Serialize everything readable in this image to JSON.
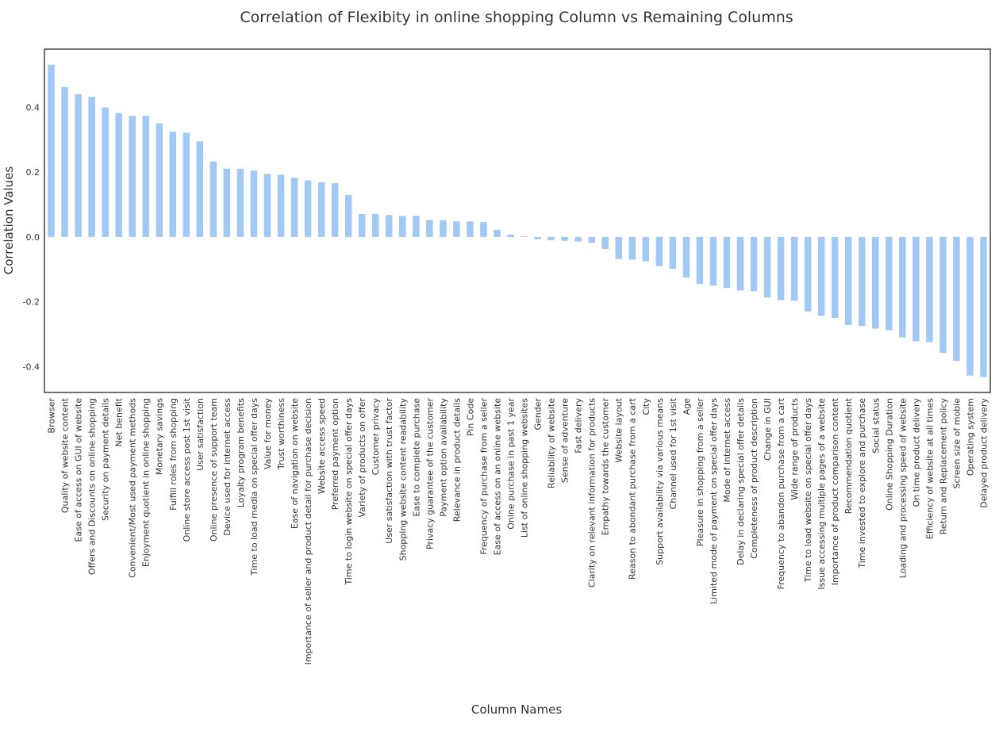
{
  "chart_data": {
    "type": "bar",
    "title": "Correlation of Flexibity in online shopping Column vs Remaining Columns",
    "xlabel": "Column Names",
    "ylabel": "Correlation Values",
    "ylim": [
      -0.48,
      0.58
    ],
    "yticks": [
      -0.4,
      -0.2,
      0.0,
      0.2,
      0.4
    ],
    "ytick_labels": [
      "-0.4",
      "-0.2",
      "0.0",
      "0.2",
      "0.4"
    ],
    "grid": false,
    "bar_color": "#a1c9f4",
    "categories": [
      "Browser",
      "Quality of website content",
      "Ease of access on GUI of website",
      "Offers and Discounts on online shopping",
      "Security on payment details",
      "Net benefit",
      "Convenient/Most used payment methods",
      "Enjoyment quotient in online shopping",
      "Monetary savings",
      "Fulfill roles from shopping",
      "Online store access post 1st visit",
      "User satisfaction",
      "Online presence of support team",
      "Device used for internet access",
      "Loyalty program benefits",
      "Time to load media on special offer days",
      "Value for money",
      "Trust worthiness",
      "Ease of navigation on website",
      "Importance of seller and product detail for purchase decision",
      "Website access speed",
      "Preferred payment option",
      "Time to login website on special offer days",
      "Variety of products on offer",
      "Customer privacy",
      "User satisfaction with trust factor",
      "Shopping website content readability",
      "Ease to complete purchase",
      "Privacy guarantee of the customer",
      "Payment option availability",
      "Relevance in product details",
      "Pin Code",
      "Frequency of purchase from a seller",
      "Ease of access on an online website",
      "Onine purchase in past 1 year",
      "List of online shopping websites",
      "Gender",
      "Reliability of website",
      "Sense of adventure",
      "Fast delivery",
      "Clarity on relevant information for products",
      "Empathy towards the customer",
      "Website layout",
      "Reason to abondant purchase from a cart",
      "City",
      "Support availability via various means",
      "Channel used for 1st visit",
      "Age",
      "Pleasure in shopping from a seller",
      "Limited mode of payment on special offer days",
      "Mode of internet access",
      "Delay in declaring special offer details",
      "Completeness of product description",
      "Change in GUI",
      "Frequency to abandon purchase from a cart",
      "Wide range of products",
      "Time to load website on special offer days",
      "Issue accessing multiple pages of a website",
      "Importance of product comparison content",
      "Recommendation quotient",
      "Time invested to explore and purchase",
      "Social status",
      "Online Shopping Duration",
      "Loading and processing speed of website",
      "On time product delivery",
      "Efficiency of website at all times",
      "Return and Replacement policy",
      "Screen size of mobie",
      "Operating system",
      "Delayed product delivery"
    ],
    "values": [
      0.532,
      0.463,
      0.441,
      0.433,
      0.4,
      0.383,
      0.374,
      0.374,
      0.351,
      0.325,
      0.322,
      0.295,
      0.233,
      0.211,
      0.211,
      0.205,
      0.195,
      0.192,
      0.183,
      0.175,
      0.169,
      0.166,
      0.13,
      0.071,
      0.071,
      0.068,
      0.065,
      0.065,
      0.052,
      0.052,
      0.048,
      0.048,
      0.046,
      0.022,
      0.007,
      0.002,
      -0.007,
      -0.01,
      -0.012,
      -0.014,
      -0.018,
      -0.037,
      -0.068,
      -0.07,
      -0.075,
      -0.09,
      -0.098,
      -0.125,
      -0.145,
      -0.15,
      -0.157,
      -0.165,
      -0.167,
      -0.187,
      -0.195,
      -0.197,
      -0.23,
      -0.243,
      -0.25,
      -0.272,
      -0.275,
      -0.283,
      -0.288,
      -0.31,
      -0.322,
      -0.325,
      -0.358,
      -0.383,
      -0.428,
      -0.432
    ]
  }
}
